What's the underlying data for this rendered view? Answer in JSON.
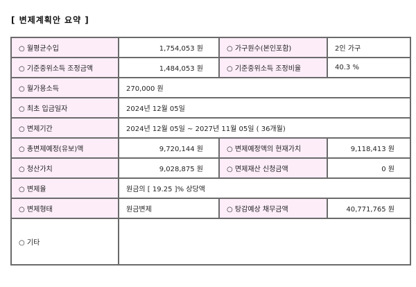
{
  "title": "[ 변제계획안 요약 ]",
  "bullet": "○",
  "rows": [
    {
      "label1": "월평균수입",
      "value1": "1,754,053 원",
      "label2": "가구원수(본인포함)",
      "value2": "2인 가구"
    },
    {
      "label1": "기준중위소득 조정금액",
      "value1": "1,484,053 원",
      "label2": "기준중위소득 조정비율",
      "value2": "40.3 %"
    },
    {
      "label1": "월가용소득",
      "value1": "270,000 원"
    },
    {
      "label1": "최초 입금일자",
      "value1": "2024년 12월 05일"
    },
    {
      "label1": "변제기간",
      "value1": "2024년 12월 05일 ~ 2027년 11월 05일 ( 36개월)"
    },
    {
      "label1": "총변제예정(유보)액",
      "value1": "9,720,144 원",
      "label2": "변제예정액의 현재가치",
      "value2": "9,118,413 원"
    },
    {
      "label1": "청산가치",
      "value1": "9,028,875 원",
      "label2": "면제재산 신청금액",
      "value2": "0 원"
    },
    {
      "label1": "변제율",
      "value1": "원금의 [ 19.25 ]% 상당액"
    },
    {
      "label1": "변제형태",
      "value1": "원금변제",
      "label2": "탕감예상 채무금액",
      "value2": "40,771,765 원"
    },
    {
      "label1": "기타",
      "value1": ""
    }
  ]
}
